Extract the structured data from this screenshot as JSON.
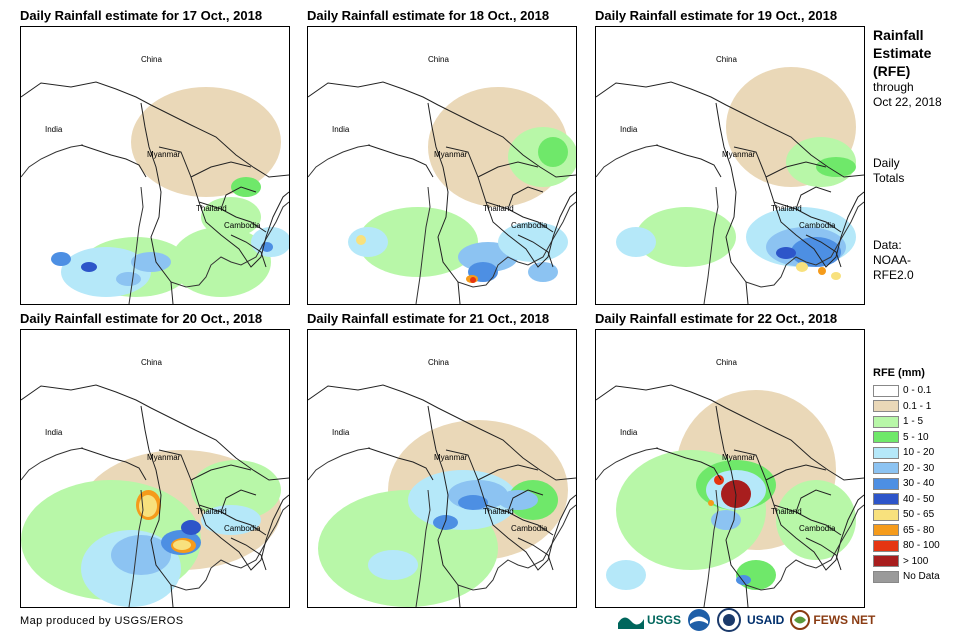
{
  "panels": [
    {
      "title": "Daily Rainfall estimate for 17 Oct., 2018"
    },
    {
      "title": "Daily Rainfall estimate for 18 Oct., 2018"
    },
    {
      "title": "Daily Rainfall estimate for 19 Oct., 2018"
    },
    {
      "title": "Daily Rainfall estimate for 20 Oct., 2018"
    },
    {
      "title": "Daily Rainfall estimate for 21 Oct., 2018"
    },
    {
      "title": "Daily Rainfall estimate for 22 Oct., 2018"
    }
  ],
  "labels": {
    "china": "China",
    "india": "India",
    "myanmar": "Myanmar",
    "thailand": "Thailand",
    "cambodia": "Cambodia"
  },
  "side": {
    "heading": [
      "Rainfall",
      "Estimate",
      "(RFE)"
    ],
    "through": "through",
    "date": "Oct 22, 2018",
    "daily": "Daily",
    "totals": "Totals",
    "data_label": "Data:",
    "source1": "NOAA-",
    "source2": "RFE2.0"
  },
  "legend": {
    "title": "RFE (mm)",
    "items": [
      {
        "label": "0 - 0.1",
        "color": "#ffffff"
      },
      {
        "label": "0.1 - 1",
        "color": "#ead8b8"
      },
      {
        "label": "1 - 5",
        "color": "#b8f7a8"
      },
      {
        "label": "5 - 10",
        "color": "#6fe86a"
      },
      {
        "label": "10 - 20",
        "color": "#b5e8f9"
      },
      {
        "label": "20 - 30",
        "color": "#8cc3f2"
      },
      {
        "label": "30 - 40",
        "color": "#4d8fe3"
      },
      {
        "label": "40 - 50",
        "color": "#2d55c9"
      },
      {
        "label": "50 - 65",
        "color": "#f8e17d"
      },
      {
        "label": "65 - 80",
        "color": "#f59b1b"
      },
      {
        "label": "80 - 100",
        "color": "#e53512"
      },
      {
        "label": "> 100",
        "color": "#a81e1e"
      },
      {
        "label": "No Data",
        "color": "#9a9a9a"
      }
    ]
  },
  "footer": {
    "credit": "Map produced by USGS/EROS",
    "logos": [
      "USGS",
      "USAID",
      "FEWS NET"
    ]
  }
}
